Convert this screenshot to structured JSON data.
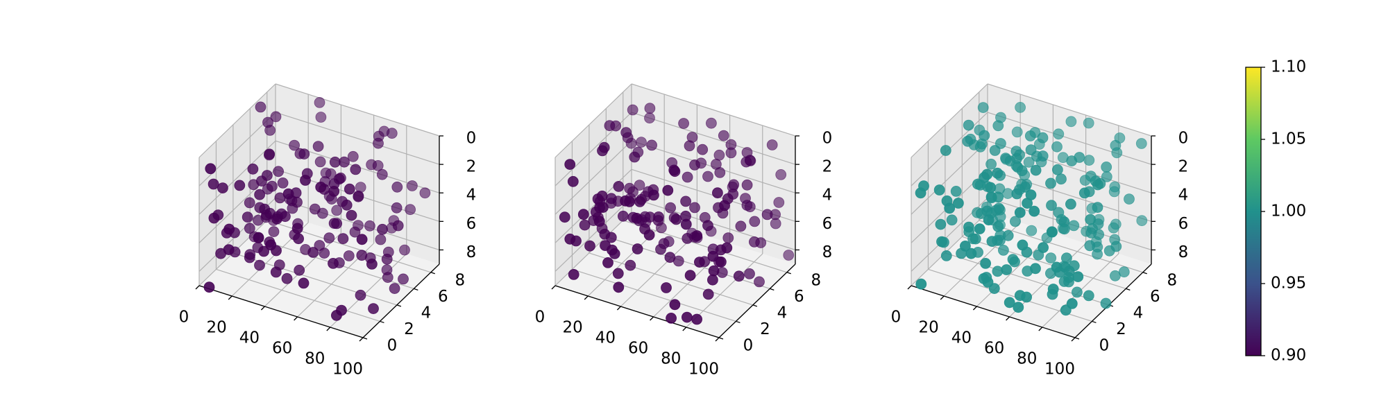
{
  "chart_data": {
    "type": "scatter3d",
    "panels": [
      {
        "marker_color": "#440154",
        "color_value": 0.9,
        "alpha": 0.55,
        "xlim": [
          0,
          100
        ],
        "ylim": [
          0,
          9
        ],
        "zlim": [
          0,
          9
        ],
        "xticks": [
          "0",
          "20",
          "40",
          "60",
          "80",
          "100"
        ],
        "yticks": [
          "0",
          "2",
          "4",
          "6",
          "8"
        ],
        "zticks": [
          "0",
          "2",
          "4",
          "6",
          "8"
        ],
        "z_inverted": true,
        "n_points": 150,
        "seed": 11
      },
      {
        "marker_color": "#440154",
        "color_value": 0.9,
        "alpha": 0.55,
        "xlim": [
          0,
          100
        ],
        "ylim": [
          0,
          9
        ],
        "zlim": [
          0,
          9
        ],
        "xticks": [
          "0",
          "20",
          "40",
          "60",
          "80",
          "100"
        ],
        "yticks": [
          "0",
          "2",
          "4",
          "6",
          "8"
        ],
        "zticks": [
          "0",
          "2",
          "4",
          "6",
          "8"
        ],
        "z_inverted": true,
        "n_points": 160,
        "seed": 23
      },
      {
        "marker_color": "#21918c",
        "color_value": 1.0,
        "alpha": 0.6,
        "xlim": [
          0,
          100
        ],
        "ylim": [
          0,
          9
        ],
        "zlim": [
          0,
          9
        ],
        "xticks": [
          "0",
          "20",
          "40",
          "60",
          "80",
          "100"
        ],
        "yticks": [
          "0",
          "2",
          "4",
          "6",
          "8"
        ],
        "zticks": [
          "0",
          "2",
          "4",
          "6",
          "8"
        ],
        "z_inverted": true,
        "n_points": 200,
        "seed": 37
      }
    ],
    "colorbar": {
      "colormap": "viridis",
      "range": [
        0.9,
        1.1
      ],
      "ticks": [
        "0.90",
        "0.95",
        "1.00",
        "1.05",
        "1.10"
      ]
    },
    "grid": true
  }
}
